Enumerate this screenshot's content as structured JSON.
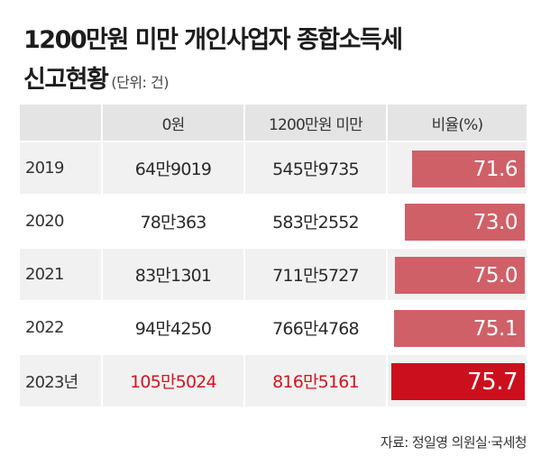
{
  "title_line1": "1200만원 미만 개인사업자 종합소득세",
  "title_line2": "신고현황",
  "unit": "(단위: 건)",
  "headers": {
    "year": "",
    "zero": "0원",
    "under": "1200만원 미만",
    "ratio": "비율(%)"
  },
  "chart_data": {
    "type": "table",
    "title": "1200만원 미만 개인사업자 종합소득세 신고현황",
    "unit": "(단위: 건)",
    "columns": [
      "",
      "0원",
      "1200만원 미만",
      "비율(%)"
    ],
    "rows": [
      {
        "year": "2019",
        "zero": "64만9019",
        "under": "545만9735",
        "ratio": 71.6,
        "ratio_label": "71.6"
      },
      {
        "year": "2020",
        "zero": "78만363",
        "under": "583만2552",
        "ratio": 73.0,
        "ratio_label": "73.0"
      },
      {
        "year": "2021",
        "zero": "83만1301",
        "under": "711만5727",
        "ratio": 75.0,
        "ratio_label": "75.0"
      },
      {
        "year": "2022",
        "zero": "94만4250",
        "under": "766만4768",
        "ratio": 75.1,
        "ratio_label": "75.1"
      },
      {
        "year": "2023년",
        "zero": "105만5024",
        "under": "816만5161",
        "ratio": 75.7,
        "ratio_label": "75.7",
        "highlight": true
      }
    ],
    "bar_color": "#d06068",
    "highlight_color": "#cc0f1d"
  },
  "source": "자료: 정일영 의원실·국세청"
}
